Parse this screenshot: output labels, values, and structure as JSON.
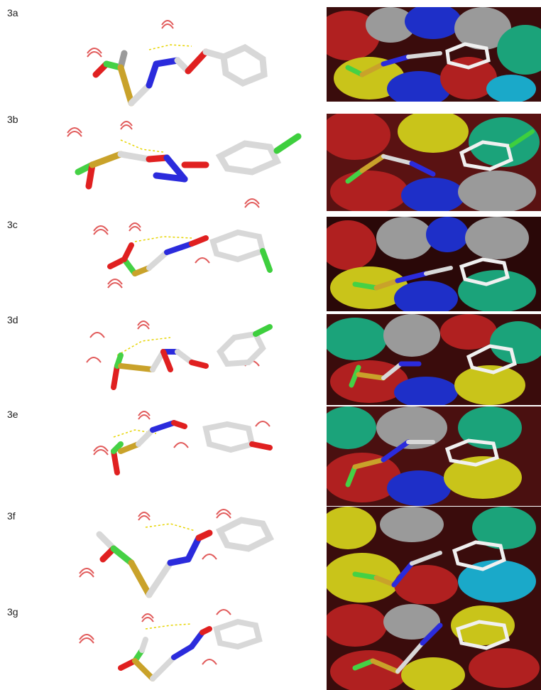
{
  "figure": {
    "panels": [
      {
        "id": "3a",
        "label": "3a"
      },
      {
        "id": "3b",
        "label": "3b"
      },
      {
        "id": "3c",
        "label": "3c"
      },
      {
        "id": "3d",
        "label": "3d"
      },
      {
        "id": "3e",
        "label": "3e"
      },
      {
        "id": "3f",
        "label": "3f"
      },
      {
        "id": "3g",
        "label": "3g"
      }
    ]
  },
  "colors": {
    "carbon_ligand": "#45d145",
    "carbon_linker": "#d8d8d8",
    "sulfur": "#c9a22a",
    "oxygen": "#e02020",
    "nitrogen": "#2b2bdc",
    "chlorine": "#3ecf3e",
    "hbond": "#e6d400",
    "residue_arc": "#e15a5a",
    "surface_gray": "#9a9a9a",
    "surface_red": "#b02020",
    "surface_yellow": "#c9c41a",
    "surface_blue": "#1e2fc8",
    "surface_cyan": "#1aa9c9",
    "surface_teal": "#1ba37a"
  }
}
